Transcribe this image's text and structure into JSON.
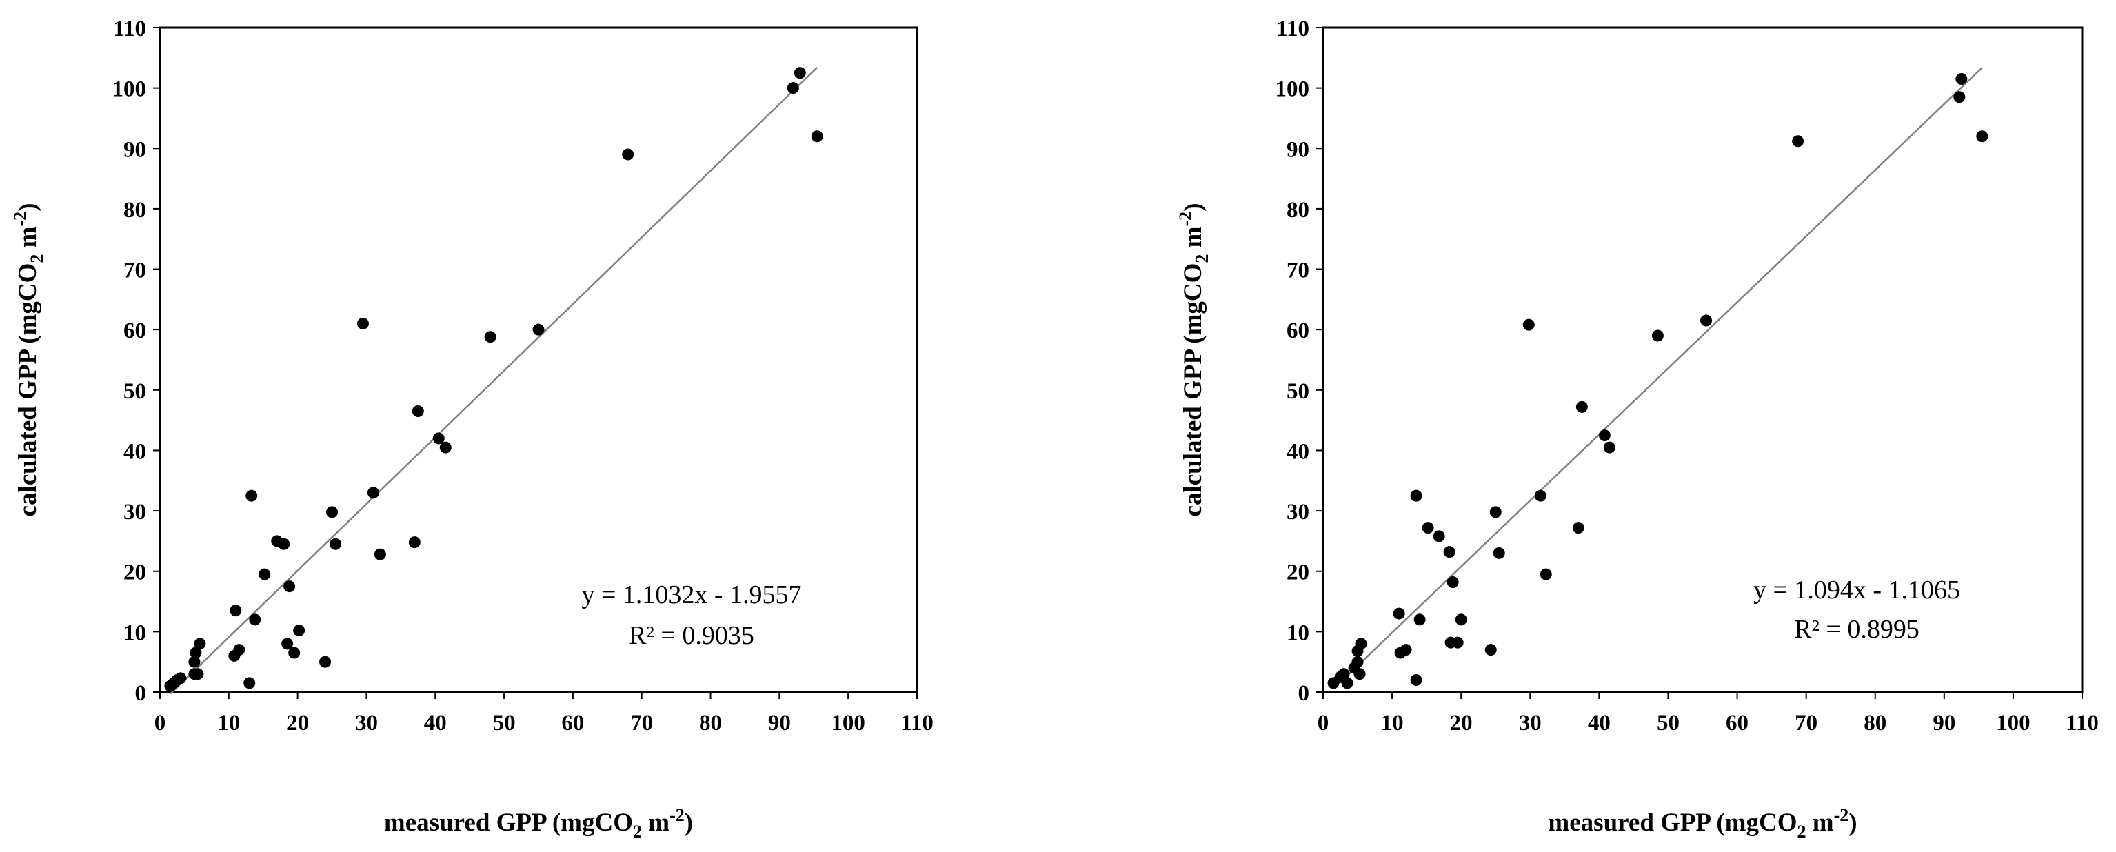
{
  "colors": {
    "background": "#ffffff",
    "points": "#000000",
    "trendline": "#808080",
    "frame": "#000000"
  },
  "chart_data": [
    {
      "type": "scatter",
      "xlabel": "measured GPP (mgCO2 m-2)",
      "ylabel": "calculated GPP (mgCO2 m-2)",
      "xlabel_parts": [
        "measured GPP (mgCO",
        "2",
        " m",
        "-2",
        ")"
      ],
      "ylabel_parts": [
        "calculated GPP (mgCO",
        "2",
        " m",
        "-2",
        ")"
      ],
      "xlim": [
        0,
        110
      ],
      "ylim": [
        0,
        110
      ],
      "xticks": [
        "0",
        "10",
        "20",
        "30",
        "40",
        "50",
        "60",
        "70",
        "80",
        "90",
        "100",
        "110"
      ],
      "yticks": [
        "0",
        "10",
        "20",
        "30",
        "40",
        "50",
        "60",
        "70",
        "80",
        "90",
        "100",
        "110"
      ],
      "grid": false,
      "points": [
        [
          1.5,
          1
        ],
        [
          2,
          1.5
        ],
        [
          2.5,
          2
        ],
        [
          3,
          2.3
        ],
        [
          5,
          3
        ],
        [
          5.5,
          3
        ],
        [
          5,
          5
        ],
        [
          5.2,
          6.5
        ],
        [
          5.8,
          8
        ],
        [
          10.8,
          6
        ],
        [
          11,
          13.5
        ],
        [
          11.5,
          7
        ],
        [
          13,
          1.5
        ],
        [
          13.3,
          32.5
        ],
        [
          13.8,
          12
        ],
        [
          15.2,
          19.5
        ],
        [
          17,
          25
        ],
        [
          18,
          24.5
        ],
        [
          18.5,
          8
        ],
        [
          18.8,
          17.5
        ],
        [
          19.5,
          6.5
        ],
        [
          20.2,
          10.2
        ],
        [
          24,
          5
        ],
        [
          25,
          29.8
        ],
        [
          25.5,
          24.5
        ],
        [
          29.5,
          61
        ],
        [
          31,
          33
        ],
        [
          32,
          22.8
        ],
        [
          37,
          24.8
        ],
        [
          37.5,
          46.5
        ],
        [
          40.5,
          42
        ],
        [
          41.5,
          40.5
        ],
        [
          48,
          58.8
        ],
        [
          55,
          60
        ],
        [
          68,
          89
        ],
        [
          92,
          100
        ],
        [
          93,
          102.5
        ],
        [
          95.5,
          92
        ]
      ],
      "trendline": {
        "slope": 1.1032,
        "intercept": -1.9557,
        "x_range": [
          1.5,
          95.5
        ]
      },
      "annotation": {
        "equation": "y = 1.1032x - 1.9557",
        "r2": "R² = 0.9035"
      }
    },
    {
      "type": "scatter",
      "xlabel": "measured GPP (mgCO2 m-2)",
      "ylabel": "calculated GPP (mgCO2 m-2)",
      "xlabel_parts": [
        "measured GPP (mgCO",
        "2",
        " m",
        "-2",
        ")"
      ],
      "ylabel_parts": [
        "calculated GPP (mgCO",
        "2",
        " m",
        "-2",
        ")"
      ],
      "xlim": [
        0,
        110
      ],
      "ylim": [
        0,
        110
      ],
      "xticks": [
        "0",
        "10",
        "20",
        "30",
        "40",
        "50",
        "60",
        "70",
        "80",
        "90",
        "100",
        "110"
      ],
      "yticks": [
        "0",
        "10",
        "20",
        "30",
        "40",
        "50",
        "60",
        "70",
        "80",
        "90",
        "100",
        "110"
      ],
      "grid": false,
      "points": [
        [
          1.5,
          1.5
        ],
        [
          2.5,
          2.5
        ],
        [
          3,
          3
        ],
        [
          3.5,
          1.5
        ],
        [
          4.5,
          4
        ],
        [
          5,
          5
        ],
        [
          5,
          6.8
        ],
        [
          5.3,
          3
        ],
        [
          5.5,
          8
        ],
        [
          11,
          13
        ],
        [
          11.2,
          6.5
        ],
        [
          12,
          7
        ],
        [
          13.5,
          2
        ],
        [
          13.5,
          32.5
        ],
        [
          14,
          12
        ],
        [
          15.2,
          27.2
        ],
        [
          16.8,
          25.8
        ],
        [
          18.3,
          23.2
        ],
        [
          18.5,
          8.2
        ],
        [
          18.8,
          18.2
        ],
        [
          19.5,
          8.2
        ],
        [
          20,
          12
        ],
        [
          24.3,
          7
        ],
        [
          25,
          29.8
        ],
        [
          25.5,
          23
        ],
        [
          29.8,
          60.8
        ],
        [
          31.5,
          32.5
        ],
        [
          32.3,
          19.5
        ],
        [
          37,
          27.2
        ],
        [
          37.5,
          47.2
        ],
        [
          40.8,
          42.5
        ],
        [
          41.5,
          40.5
        ],
        [
          48.5,
          59
        ],
        [
          55.5,
          61.5
        ],
        [
          68.8,
          91.2
        ],
        [
          92.2,
          98.5
        ],
        [
          92.5,
          101.5
        ],
        [
          95.5,
          92
        ]
      ],
      "trendline": {
        "slope": 1.094,
        "intercept": -1.1065,
        "x_range": [
          1.5,
          95.5
        ]
      },
      "annotation": {
        "equation": "y = 1.094x - 1.1065",
        "r2": "R² = 0.8995"
      }
    }
  ]
}
